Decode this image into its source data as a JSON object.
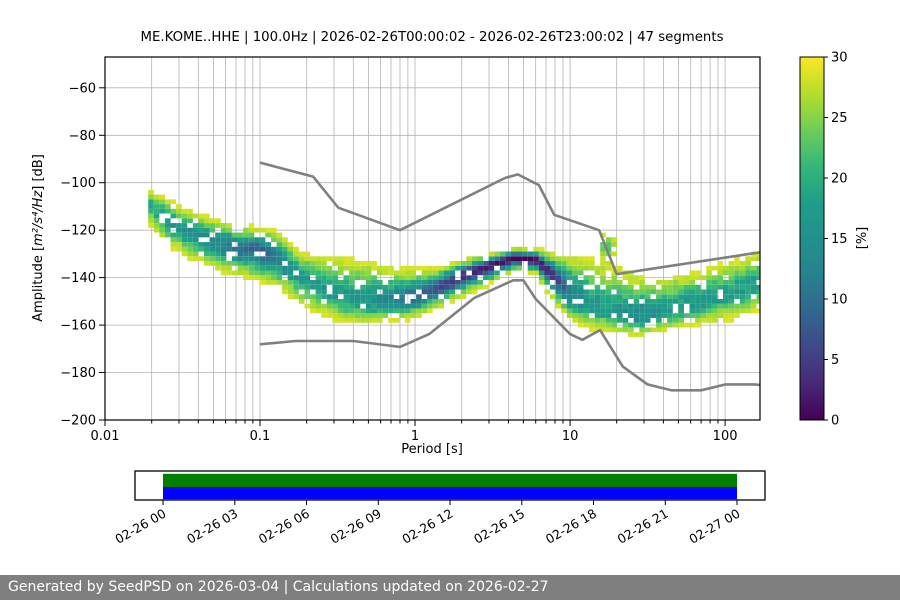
{
  "title": "ME.KOME..HHE | 100.0Hz | 2026-02-26T00:00:02 - 2026-02-26T23:00:02 | 47 segments",
  "axes": {
    "x": {
      "label": "Period [s]",
      "scale": "log",
      "min": 0.01,
      "max": 168,
      "major_tick_values": [
        0.01,
        0.1,
        1,
        10,
        100
      ],
      "major_tick_labels": [
        "0.01",
        "0.1",
        "1",
        "10",
        "100"
      ]
    },
    "y": {
      "label_prefix": "Amplitude [",
      "label_math": "m²/s⁴/Hz",
      "label_suffix": "] [dB]",
      "min": -200,
      "max": -47,
      "tick_values": [
        -60,
        -80,
        -100,
        -120,
        -140,
        -160,
        -180,
        -200
      ],
      "tick_labels": [
        "−60",
        "−80",
        "−100",
        "−120",
        "−140",
        "−160",
        "−180",
        "−200"
      ]
    }
  },
  "colorbar": {
    "label": "[%]",
    "min": 0,
    "max": 30,
    "tick_values": [
      0,
      5,
      10,
      15,
      20,
      25,
      30
    ],
    "tick_labels": [
      "0",
      "5",
      "10",
      "15",
      "20",
      "25",
      "30"
    ],
    "colormap": "viridis_r"
  },
  "timeline": {
    "tick_labels": [
      "02-26 00",
      "02-26 03",
      "02-26 06",
      "02-26 09",
      "02-26 12",
      "02-26 15",
      "02-26 18",
      "02-26 21",
      "02-27 00"
    ],
    "bars": [
      {
        "name": "coverage-bar-top",
        "color": "#008000"
      },
      {
        "name": "coverage-bar-bottom",
        "color": "#0000ff"
      }
    ]
  },
  "footer": {
    "text": "Generated by SeedPSD on 2026-03-04 | Calculations updated on 2026-02-27",
    "bg": "#7f7f7f"
  },
  "chart_data": {
    "type": "heatmap",
    "subtype": "ppsd-probability-density",
    "title": "ME.KOME..HHE | 100.0Hz | 2026-02-26T00:00:02 - 2026-02-26T23:00:02 | 47 segments",
    "xlabel": "Period [s]",
    "ylabel": "Amplitude [m²/s⁴/Hz] [dB]",
    "xscale": "log",
    "xlim": [
      0.01,
      168
    ],
    "ylim": [
      -200,
      -47
    ],
    "grid": true,
    "grid_color": "#b3b3b3",
    "colorbar": {
      "label": "[%]",
      "min": 0,
      "max": 30,
      "colormap": "viridis_r"
    },
    "ppsd_bands_format": [
      "period_s",
      "db_low",
      "db_mode",
      "db_high",
      "peak_percent"
    ],
    "ppsd_bands": [
      [
        0.019,
        -116,
        -108,
        -103,
        10
      ],
      [
        0.025,
        -124,
        -115,
        -108,
        13
      ],
      [
        0.035,
        -130,
        -121,
        -113,
        15
      ],
      [
        0.05,
        -134,
        -125,
        -117,
        16
      ],
      [
        0.07,
        -137,
        -127,
        -120,
        20
      ],
      [
        0.1,
        -139,
        -128,
        -121,
        22
      ],
      [
        0.13,
        -142,
        -131,
        -123,
        18
      ],
      [
        0.18,
        -149,
        -139,
        -131,
        14
      ],
      [
        0.25,
        -154,
        -144,
        -133,
        13
      ],
      [
        0.35,
        -157,
        -148,
        -134,
        13
      ],
      [
        0.5,
        -158,
        -150,
        -136,
        14
      ],
      [
        0.7,
        -157,
        -150,
        -138,
        16
      ],
      [
        1.0,
        -155,
        -148,
        -139,
        21
      ],
      [
        1.4,
        -151,
        -144.5,
        -138,
        24
      ],
      [
        2.0,
        -146,
        -139.5,
        -134,
        27
      ],
      [
        3.0,
        -141,
        -135,
        -131,
        29
      ],
      [
        4.5,
        -135.5,
        -131.5,
        -128.5,
        30
      ],
      [
        6.0,
        -137,
        -132.5,
        -129,
        30
      ],
      [
        8.0,
        -148,
        -139.5,
        -132,
        26
      ],
      [
        10,
        -156,
        -147,
        -134,
        19
      ],
      [
        14,
        -160,
        -152,
        -135,
        13
      ],
      [
        20,
        -162,
        -155,
        -138,
        13
      ],
      [
        28,
        -163,
        -156.5,
        -142,
        16
      ],
      [
        40,
        -161,
        -154,
        -142,
        13
      ],
      [
        60,
        -159,
        -151,
        -140,
        13
      ],
      [
        90,
        -157,
        -148,
        -137,
        13
      ],
      [
        130,
        -154,
        -145,
        -134,
        12
      ],
      [
        168,
        -152,
        -142,
        -131,
        12
      ]
    ],
    "event_excursion": {
      "period_range": [
        11,
        30
      ],
      "db_center": -127,
      "db_sigma": 3.2,
      "peak_percent": 5
    },
    "noise_models": {
      "color": "#808080",
      "nhnm": [
        [
          0.1,
          -91.5
        ],
        [
          0.22,
          -97.4
        ],
        [
          0.32,
          -110.5
        ],
        [
          0.8,
          -120.0
        ],
        [
          3.8,
          -98.0
        ],
        [
          4.6,
          -96.5
        ],
        [
          6.3,
          -101.0
        ],
        [
          7.9,
          -113.5
        ],
        [
          15.4,
          -120.0
        ],
        [
          20.0,
          -138.5
        ],
        [
          168.0,
          -129.3
        ]
      ],
      "nlnm": [
        [
          0.1,
          -168.1
        ],
        [
          0.17,
          -166.7
        ],
        [
          0.4,
          -166.7
        ],
        [
          0.8,
          -169.2
        ],
        [
          1.24,
          -163.7
        ],
        [
          2.4,
          -148.6
        ],
        [
          4.3,
          -141.1
        ],
        [
          5.0,
          -141.1
        ],
        [
          6.0,
          -149.0
        ],
        [
          10.0,
          -163.8
        ],
        [
          12.0,
          -166.2
        ],
        [
          15.6,
          -162.1
        ],
        [
          21.9,
          -177.5
        ],
        [
          31.6,
          -185.0
        ],
        [
          45.0,
          -187.5
        ],
        [
          70.0,
          -187.5
        ],
        [
          101.0,
          -185.0
        ],
        [
          154.0,
          -185.0
        ],
        [
          168.0,
          -185.2
        ]
      ]
    }
  }
}
